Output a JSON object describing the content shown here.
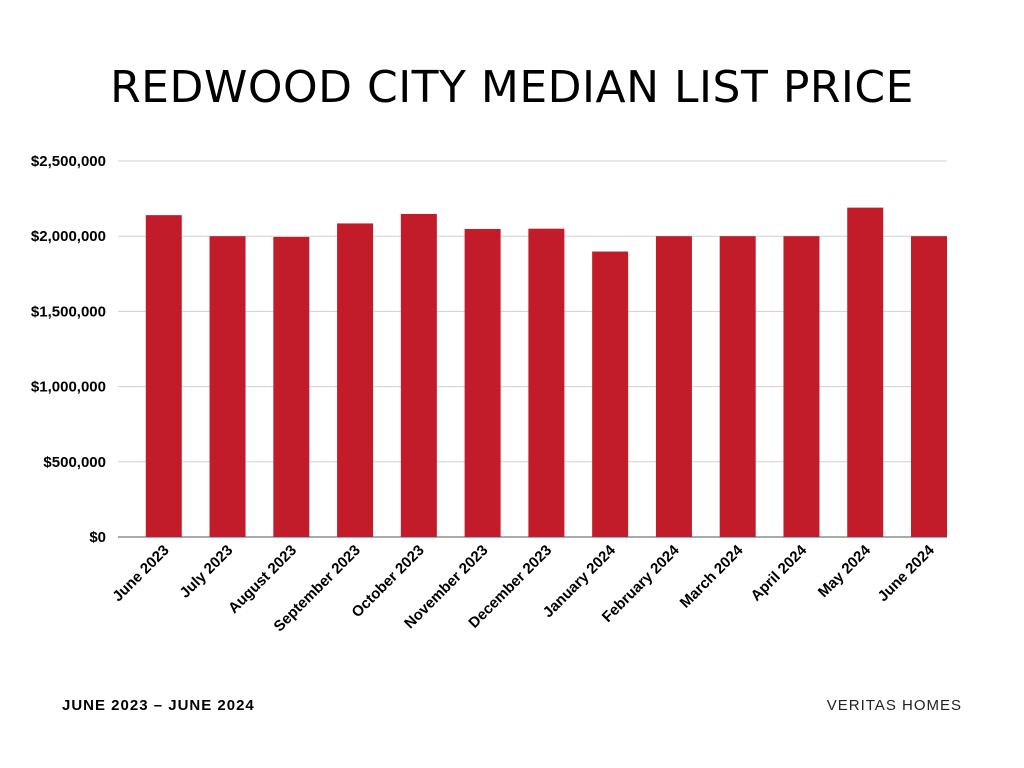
{
  "header": {
    "title": "REDWOOD CITY MEDIAN LIST PRICE"
  },
  "footer": {
    "date_range": "JUNE 2023 – JUNE 2024",
    "brand": "VERITAS HOMES"
  },
  "colors": {
    "bar": "#c21c2b",
    "grid": "#d0d0d0",
    "axis": "#555555"
  },
  "chart_data": {
    "type": "bar",
    "title": "REDWOOD CITY MEDIAN LIST PRICE",
    "xlabel": "",
    "ylabel": "",
    "categories": [
      "June 2023",
      "July 2023",
      "August 2023",
      "September 2023",
      "October 2023",
      "November 2023",
      "December 2023",
      "January 2024",
      "February 2024",
      "March 2024",
      "April 2024",
      "May 2024",
      "June 2024"
    ],
    "values": [
      2140000,
      2000000,
      1995000,
      2085000,
      2148000,
      2048000,
      2050000,
      1898000,
      2000000,
      2000000,
      2000000,
      2190000,
      2000000
    ],
    "ylim": [
      0,
      2500000
    ],
    "yticks": [
      0,
      500000,
      1000000,
      1500000,
      2000000,
      2500000
    ],
    "ytick_labels": [
      "$0",
      "$500,000",
      "$1,000,000",
      "$1,500,000",
      "$2,000,000",
      "$2,500,000"
    ],
    "grid": true,
    "legend": "none"
  }
}
